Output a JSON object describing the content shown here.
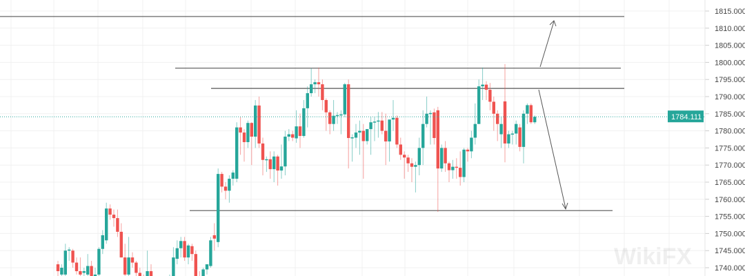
{
  "chart_data": {
    "type": "candlestick",
    "title": "",
    "y_axis": {
      "range": [
        1738,
        1818
      ],
      "ticks": [
        "1815.000",
        "1810.000",
        "1805.000",
        "1800.000",
        "1795.000",
        "1790.000",
        "1785.000",
        "1780.000",
        "1775.000",
        "1770.000",
        "1765.000",
        "1760.000",
        "1755.000",
        "1750.000",
        "1745.000",
        "1740.000"
      ],
      "tick_values": [
        1815,
        1810,
        1805,
        1800,
        1795,
        1790,
        1785,
        1780,
        1775,
        1770,
        1765,
        1760,
        1755,
        1750,
        1745,
        1740
      ]
    },
    "last_price": 1784.111,
    "last_price_label": "1784.111",
    "grid": true,
    "colors": {
      "up": "#26a69a",
      "down": "#ef5350",
      "drawing": "#555555",
      "grid": "#f0f0f0"
    },
    "horizontal_levels": [
      1813.4,
      1798.3,
      1792.4,
      1756.7
    ],
    "candles_ohlc": [
      [
        1741,
        1742,
        1737,
        1739
      ],
      [
        1738,
        1741,
        1736,
        1740
      ],
      [
        1738,
        1747,
        1737,
        1745
      ],
      [
        1745,
        1746,
        1742,
        1745.3
      ],
      [
        1745,
        1745.5,
        1740,
        1741.5
      ],
      [
        1741.5,
        1743,
        1738,
        1739
      ],
      [
        1739,
        1743,
        1737,
        1738
      ],
      [
        1738.5,
        1740,
        1737,
        1739
      ],
      [
        1738,
        1744,
        1737,
        1740.5
      ],
      [
        1740.5,
        1742,
        1736,
        1737
      ],
      [
        1737,
        1740,
        1735,
        1738
      ],
      [
        1738,
        1746,
        1737,
        1745.5
      ],
      [
        1745.5,
        1751,
        1744,
        1749.5
      ],
      [
        1748,
        1759,
        1747,
        1757.3
      ],
      [
        1757.3,
        1758.5,
        1754,
        1755.5
      ],
      [
        1755.5,
        1757,
        1752,
        1754.5
      ],
      [
        1754.5,
        1757,
        1749,
        1750.5
      ],
      [
        1750.5,
        1753,
        1744,
        1743
      ],
      [
        1743,
        1747,
        1737,
        1738
      ],
      [
        1738,
        1749,
        1737,
        1743
      ],
      [
        1743,
        1744.5,
        1740,
        1741.5
      ],
      [
        1741.5,
        1742,
        1737,
        1738.5
      ],
      [
        1738.5,
        1740,
        1734,
        1735
      ],
      [
        1737,
        1738,
        1735,
        1736.5
      ],
      [
        1737,
        1745,
        1736,
        1739
      ],
      [
        1739,
        1741,
        1734,
        1735
      ],
      [
        1735,
        1737,
        1731,
        1733
      ],
      [
        1733,
        1735,
        1730,
        1734
      ],
      [
        1734,
        1736,
        1731,
        1732
      ],
      [
        1732,
        1736,
        1730,
        1735
      ],
      [
        1735,
        1738,
        1733,
        1737
      ],
      [
        1737,
        1746,
        1736,
        1743
      ],
      [
        1742.6,
        1748,
        1741,
        1745.7
      ],
      [
        1745.7,
        1749,
        1743,
        1747.8
      ],
      [
        1747.8,
        1749,
        1742,
        1743
      ],
      [
        1743,
        1747,
        1741,
        1746.5
      ],
      [
        1746.3,
        1747,
        1742,
        1744
      ],
      [
        1744,
        1745,
        1735,
        1737
      ],
      [
        1737,
        1739,
        1733,
        1735
      ],
      [
        1735,
        1740,
        1734,
        1739.5
      ],
      [
        1739.5,
        1741,
        1738,
        1741
      ],
      [
        1740.5,
        1749,
        1740,
        1748
      ],
      [
        1749.5,
        1753,
        1745,
        1748.5
      ],
      [
        1747.5,
        1769,
        1746,
        1767.4
      ],
      [
        1767.4,
        1768,
        1762,
        1763.7
      ],
      [
        1763.7,
        1765,
        1760,
        1762.5
      ],
      [
        1762.5,
        1767,
        1759,
        1766
      ],
      [
        1766,
        1768.5,
        1764,
        1767.8
      ],
      [
        1766,
        1782.5,
        1765,
        1781
      ],
      [
        1781,
        1784,
        1773,
        1779.5
      ],
      [
        1779.5,
        1780.5,
        1771,
        1776.7
      ],
      [
        1776.7,
        1783,
        1775,
        1782.3
      ],
      [
        1782.3,
        1782.5,
        1770,
        1778.3
      ],
      [
        1778.3,
        1789,
        1775,
        1787.4
      ],
      [
        1787.4,
        1790,
        1775,
        1776.3
      ],
      [
        1776.3,
        1778,
        1767,
        1771.5
      ],
      [
        1771.5,
        1772.5,
        1768,
        1771.7
      ],
      [
        1771.7,
        1774,
        1766,
        1768.8
      ],
      [
        1768.8,
        1774,
        1765,
        1772.5
      ],
      [
        1772.5,
        1773,
        1764,
        1768.4
      ],
      [
        1768.4,
        1776,
        1766,
        1769.6
      ],
      [
        1769.6,
        1780,
        1767,
        1778.3
      ],
      [
        1778.3,
        1780.5,
        1777,
        1779
      ],
      [
        1779,
        1780,
        1777,
        1778
      ],
      [
        1777.8,
        1786,
        1776.5,
        1781.3
      ],
      [
        1781.3,
        1785,
        1775,
        1778.5
      ],
      [
        1778.5,
        1789,
        1778,
        1786.6
      ],
      [
        1786.6,
        1793,
        1781,
        1791
      ],
      [
        1791,
        1798.3,
        1790,
        1793.6
      ],
      [
        1793.6,
        1795,
        1791,
        1794.2
      ],
      [
        1794.2,
        1798.5,
        1790,
        1793.6
      ],
      [
        1793.6,
        1795,
        1786,
        1789
      ],
      [
        1789,
        1789.5,
        1780,
        1785.4
      ],
      [
        1785.4,
        1786,
        1779,
        1782
      ],
      [
        1782,
        1789,
        1780,
        1784.4
      ],
      [
        1784.4,
        1785.5,
        1782,
        1784.6
      ],
      [
        1784.6,
        1786,
        1779,
        1784.8
      ],
      [
        1784.8,
        1794,
        1784,
        1793.6
      ],
      [
        1793.6,
        1795,
        1769,
        1777.9
      ],
      [
        1777.9,
        1779,
        1771,
        1778.1
      ],
      [
        1778,
        1782,
        1775,
        1779.5
      ],
      [
        1779.5,
        1783,
        1773,
        1780
      ],
      [
        1780,
        1782,
        1766,
        1777
      ],
      [
        1777,
        1780.5,
        1776,
        1780.5
      ],
      [
        1780.5,
        1784,
        1773,
        1782.5
      ],
      [
        1782.5,
        1784,
        1777,
        1782.7
      ],
      [
        1782.7,
        1785.5,
        1778,
        1783
      ],
      [
        1783,
        1785.5,
        1779,
        1780
      ],
      [
        1780,
        1785,
        1770,
        1776.9
      ],
      [
        1776.9,
        1781,
        1771,
        1783.3
      ],
      [
        1783.3,
        1789,
        1780,
        1783.8
      ],
      [
        1783.8,
        1784.5,
        1775,
        1776
      ],
      [
        1776,
        1778,
        1771.5,
        1773
      ],
      [
        1773,
        1774,
        1766,
        1772.2
      ],
      [
        1772.2,
        1773,
        1768,
        1770.5
      ],
      [
        1770.5,
        1772,
        1765,
        1769.5
      ],
      [
        1769.5,
        1771,
        1762,
        1770
      ],
      [
        1770,
        1778,
        1767,
        1775
      ],
      [
        1775,
        1786,
        1770,
        1782
      ],
      [
        1782,
        1790,
        1781,
        1785
      ],
      [
        1785,
        1786,
        1776,
        1785.2
      ],
      [
        1785.4,
        1786.5,
        1776,
        1777.9
      ],
      [
        1786,
        1787,
        1756.3,
        1769
      ],
      [
        1769,
        1776,
        1768,
        1775
      ],
      [
        1775,
        1777,
        1768,
        1770.5
      ],
      [
        1770.5,
        1771,
        1765,
        1768.5
      ],
      [
        1768.5,
        1771.5,
        1766,
        1769.5
      ],
      [
        1769.5,
        1772,
        1766,
        1769.2
      ],
      [
        1769.2,
        1774,
        1764,
        1766.5
      ],
      [
        1766.5,
        1775,
        1765,
        1774.5
      ],
      [
        1774.5,
        1775,
        1771,
        1774
      ],
      [
        1774,
        1780,
        1772,
        1778
      ],
      [
        1778,
        1788,
        1776,
        1782
      ],
      [
        1782,
        1795,
        1782,
        1793
      ],
      [
        1793,
        1798.5,
        1789,
        1793.5
      ],
      [
        1793.5,
        1794.5,
        1789,
        1792
      ],
      [
        1792,
        1794,
        1786,
        1788.5
      ],
      [
        1788.5,
        1790,
        1780,
        1785
      ],
      [
        1785,
        1786,
        1777,
        1782
      ],
      [
        1779,
        1784,
        1775,
        1782
      ],
      [
        1788.6,
        1799.5,
        1770.8,
        1776.3
      ],
      [
        1776.3,
        1780,
        1775,
        1779
      ],
      [
        1779,
        1780,
        1776,
        1779.2
      ],
      [
        1779.2,
        1783,
        1776,
        1782
      ],
      [
        1781,
        1782,
        1774,
        1775.3
      ],
      [
        1775.3,
        1786,
        1770.5,
        1785
      ],
      [
        1785,
        1788,
        1782,
        1787.5
      ],
      [
        1787.5,
        1788,
        1782,
        1782.5
      ],
      [
        1782.5,
        1784.5,
        1782,
        1784.1
      ]
    ]
  },
  "watermark": "WikiFX"
}
